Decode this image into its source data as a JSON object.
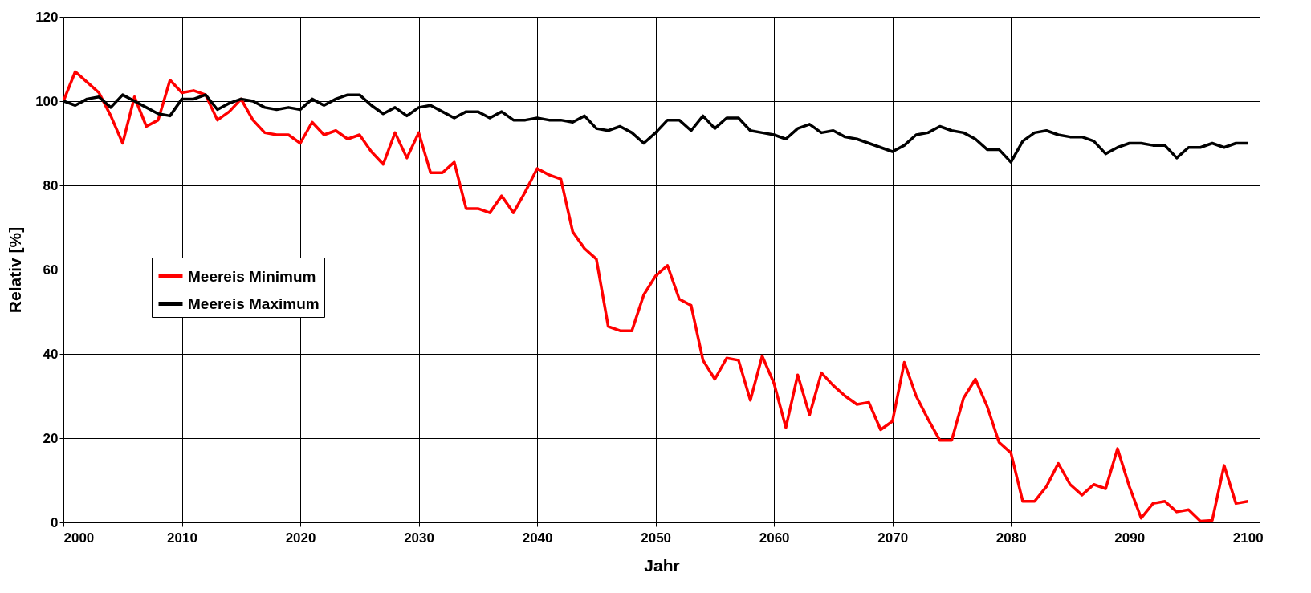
{
  "chart_data": {
    "type": "line",
    "xlabel": "Jahr",
    "ylabel": "Relativ [%]",
    "x": [
      2000,
      2001,
      2002,
      2003,
      2004,
      2005,
      2006,
      2007,
      2008,
      2009,
      2010,
      2011,
      2012,
      2013,
      2014,
      2015,
      2016,
      2017,
      2018,
      2019,
      2020,
      2021,
      2022,
      2023,
      2024,
      2025,
      2026,
      2027,
      2028,
      2029,
      2030,
      2031,
      2032,
      2033,
      2034,
      2035,
      2036,
      2037,
      2038,
      2039,
      2040,
      2041,
      2042,
      2043,
      2044,
      2045,
      2046,
      2047,
      2048,
      2049,
      2050,
      2051,
      2052,
      2053,
      2054,
      2055,
      2056,
      2057,
      2058,
      2059,
      2060,
      2061,
      2062,
      2063,
      2064,
      2065,
      2066,
      2067,
      2068,
      2069,
      2070,
      2071,
      2072,
      2073,
      2074,
      2075,
      2076,
      2077,
      2078,
      2079,
      2080,
      2081,
      2082,
      2083,
      2084,
      2085,
      2086,
      2087,
      2088,
      2089,
      2090,
      2091,
      2092,
      2093,
      2094,
      2095,
      2096,
      2097,
      2098,
      2099,
      2100
    ],
    "series": [
      {
        "name": "Meereis Minimum",
        "color": "#ff0000",
        "values": [
          100,
          107,
          104.5,
          102,
          96.5,
          90,
          101,
          94,
          95.5,
          105,
          102,
          102.5,
          101.5,
          95.5,
          97.5,
          100.5,
          95.5,
          92.5,
          92,
          92,
          90,
          95,
          92,
          93,
          91,
          92,
          88,
          85,
          92.5,
          86.5,
          92.5,
          83,
          83,
          85.5,
          74.5,
          74.5,
          73.5,
          77.5,
          73.5,
          78.5,
          84,
          82.5,
          81.5,
          69,
          65,
          62.5,
          46.5,
          45.5,
          45.5,
          54,
          58.5,
          61,
          53,
          51.5,
          38.5,
          34,
          39,
          38.5,
          29,
          39.5,
          33,
          22.5,
          35,
          25.5,
          35.5,
          32.5,
          30,
          28,
          28.5,
          22,
          24,
          38,
          30,
          24.5,
          19.5,
          19.5,
          29.5,
          34,
          27.5,
          19,
          16.5,
          5,
          5,
          8.5,
          14,
          9,
          6.5,
          9,
          8,
          17.5,
          8.5,
          1,
          4.5,
          5,
          2.5,
          3,
          0.3,
          0.5,
          13.5,
          4.5,
          5
        ]
      },
      {
        "name": "Meereis Maximum",
        "color": "#000000",
        "values": [
          100,
          99,
          100.5,
          101,
          98.5,
          101.5,
          100,
          98.5,
          97,
          96.5,
          100.5,
          100.5,
          101.5,
          98,
          99.5,
          100.5,
          100,
          98.5,
          98,
          98.5,
          98,
          100.5,
          99,
          100.5,
          101.5,
          101.5,
          99,
          97,
          98.5,
          96.5,
          98.5,
          99,
          97.5,
          96,
          97.5,
          97.5,
          96,
          97.5,
          95.5,
          95.5,
          96,
          95.5,
          95.5,
          95,
          96.5,
          93.5,
          93,
          94,
          92.5,
          90,
          92.5,
          95.5,
          95.5,
          93,
          96.5,
          93.5,
          96,
          96,
          93,
          92.5,
          92,
          91,
          93.5,
          94.5,
          92.5,
          93,
          91.5,
          91,
          90,
          89,
          88,
          89.5,
          92,
          92.5,
          94,
          93,
          92.5,
          91,
          88.5,
          88.5,
          85.5,
          90.5,
          92.5,
          93,
          92,
          91.5,
          91.5,
          90.5,
          87.5,
          89,
          90,
          90,
          89.5,
          89.5,
          86.5,
          89,
          89,
          90,
          89,
          90,
          90
        ]
      }
    ],
    "xlim": [
      2000,
      2101
    ],
    "xticks": [
      2000,
      2010,
      2020,
      2030,
      2040,
      2050,
      2060,
      2070,
      2080,
      2090,
      2100
    ],
    "ylim": [
      0,
      120
    ],
    "yticks": [
      0,
      20,
      40,
      60,
      80,
      100,
      120
    ],
    "grid": true,
    "legend": "left",
    "marker": "none",
    "line_style": "solid"
  }
}
